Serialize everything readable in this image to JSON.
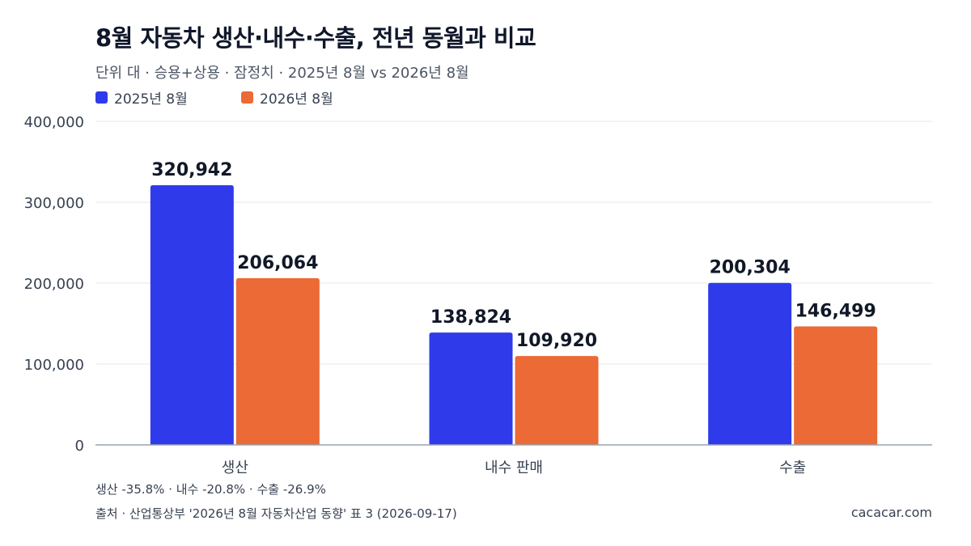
{
  "header": {
    "title": "8월 자동차 생산·내수·수출, 전년 동월과 비교",
    "subtitle": "단위 대 · 승용+상용 · 잠정치 · 2025년 8월 vs 2026년 8월"
  },
  "chart_data": {
    "type": "bar",
    "categories": [
      "생산",
      "내수 판매",
      "수출"
    ],
    "series": [
      {
        "name": "2025년 8월",
        "values": [
          320942,
          138824,
          200304
        ],
        "color": "#2f3bea"
      },
      {
        "name": "2026년 8월",
        "values": [
          206064,
          109920,
          146499
        ],
        "color": "#eb6a35"
      }
    ],
    "data_labels": [
      [
        "320,942",
        "138,824",
        "200,304"
      ],
      [
        "206,064",
        "109,920",
        "146,499"
      ]
    ],
    "ylim": [
      0,
      400000
    ],
    "y_ticks": [
      0,
      100000,
      200000,
      300000,
      400000
    ],
    "y_tick_labels": [
      "0",
      "100,000",
      "200,000",
      "300,000",
      "400,000"
    ],
    "grid": true,
    "legend": "top-left"
  },
  "footer": {
    "change_note": "생산 -35.8% · 내수 -20.8% · 수출 -26.9%",
    "source": "출처 · 산업통상부 '2026년 8월 자동차산업 동향' 표 3 (2026-09-17)",
    "brand": "cacacar.com"
  }
}
